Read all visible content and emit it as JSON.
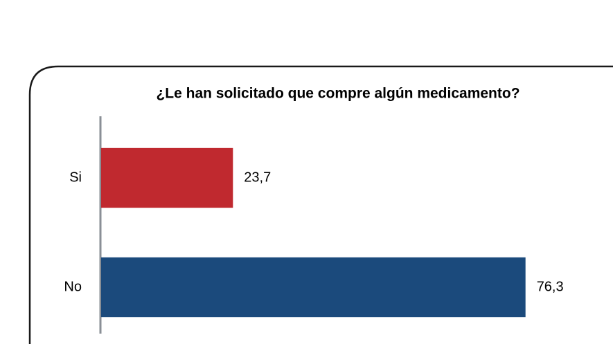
{
  "chart_data": {
    "type": "bar",
    "orientation": "horizontal",
    "title": "¿Le han solicitado que compre algún medicamento?",
    "categories": [
      "Si",
      "No"
    ],
    "values": [
      23.7,
      76.3
    ],
    "value_labels": [
      "23,7",
      "76,3"
    ],
    "colors": [
      "#c0292f",
      "#1b4a7c"
    ],
    "xlim": [
      0,
      100
    ]
  }
}
